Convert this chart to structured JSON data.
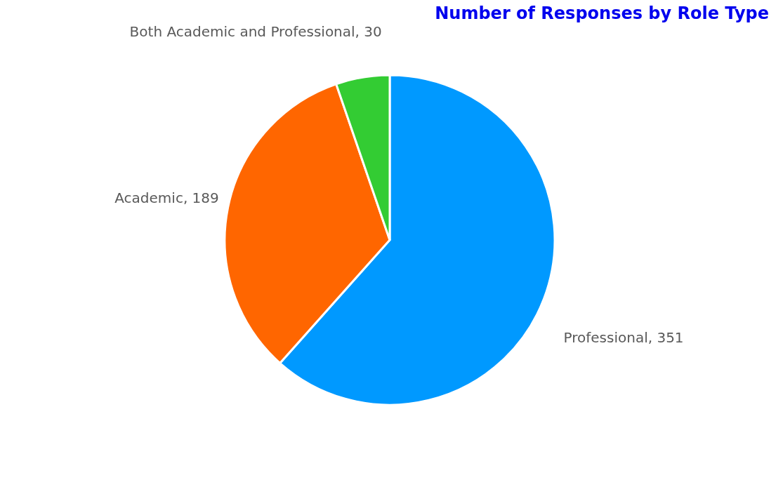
{
  "chart_data": {
    "type": "pie",
    "title": "Number of Responses by Role Type",
    "categories": [
      "Professional",
      "Academic",
      "Both Academic and Professional"
    ],
    "values": [
      351,
      189,
      30
    ],
    "colors": [
      "#0099ff",
      "#ff6600",
      "#33cc33"
    ],
    "value_labels": [
      ", 351",
      ", 189",
      ", 30"
    ],
    "legend": false
  }
}
